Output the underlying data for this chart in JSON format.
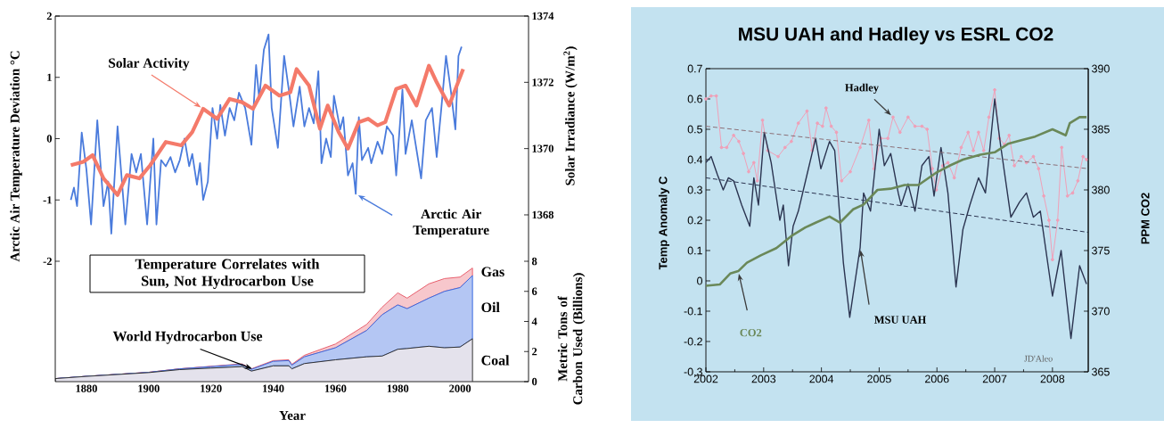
{
  "chart_data": [
    {
      "type": "line",
      "xlim": [
        1870,
        2022
      ],
      "xticks": [
        1880,
        1900,
        1920,
        1940,
        1960,
        1980,
        2000
      ],
      "tick_labels": "y",
      "ylim": [
        -2,
        2
      ],
      "yticks": [
        -2,
        -1,
        0,
        1,
        2
      ],
      "ylabel": "Arctic Air Temperature Deviation °C",
      "y2lim": [
        1366.6,
        1374
      ],
      "y2ticks": [
        1368,
        1370,
        1372,
        1374
      ],
      "y2label": "Solar Irradiance (W/m$^{2}$)",
      "series": [
        {
          "name": "Arctic Air Temperature",
          "color": "#4a7bdc",
          "x": [
            1875,
            1876,
            1877,
            1878.5,
            1880,
            1881.5,
            1883.5,
            1885.5,
            1887,
            1888,
            1890,
            1892.5,
            1894.5,
            1896,
            1897.5,
            1899.5,
            1901.5,
            1902.5,
            1904,
            1905.5,
            1907,
            1908.5,
            1910,
            1911.5,
            1913,
            1914,
            1915.5,
            1916.5,
            1917.5,
            1919,
            1920.5,
            1922,
            1923,
            1924.5,
            1926,
            1927.5,
            1929,
            1931,
            1933,
            1934.5,
            1935.5,
            1937,
            1938.5,
            1939.5,
            1941.5,
            1943.5,
            1945,
            1946.5,
            1948.5,
            1950,
            1951.5,
            1953,
            1954.5,
            1955.5,
            1957,
            1958.5,
            1959.5,
            1961.5,
            1962.5,
            1964,
            1965.5,
            1966.5,
            1967.5,
            1968.5,
            1970.5,
            1971.5,
            1973.5,
            1975,
            1976.5,
            1978.5,
            1979.5,
            1981.5,
            1982.5,
            1984.5,
            1987.5,
            1989,
            1991,
            1992.5,
            1994,
            1995.5,
            1997,
            1998.5,
            1999.5,
            2000.5
          ],
          "values": [
            -1.0,
            -0.8,
            -1.1,
            0.1,
            -0.5,
            -1.4,
            0.3,
            -1.1,
            -0.7,
            -1.55,
            0.2,
            -1.4,
            -0.25,
            -0.55,
            -0.25,
            -1.4,
            0,
            -1.4,
            -0.35,
            -0.45,
            -0.3,
            -0.55,
            -0.35,
            0,
            -0.45,
            -0.25,
            -0.75,
            -0.4,
            -1.0,
            -0.7,
            0.5,
            0,
            0.55,
            0.05,
            0.5,
            0.3,
            0.75,
            0.5,
            -0.1,
            1.2,
            0.65,
            1.45,
            1.7,
            0.5,
            -0.15,
            1.35,
            0.8,
            0.2,
            0.85,
            0.2,
            0.5,
            0.25,
            1.1,
            -0.4,
            0,
            -0.3,
            0.7,
            0.15,
            0.35,
            -0.6,
            -0.4,
            -0.9,
            0.35,
            -0.35,
            -0.15,
            -0.4,
            -0.05,
            -0.25,
            0.2,
            0.05,
            -0.6,
            0.8,
            -0.25,
            0.3,
            -0.65,
            0.3,
            0.5,
            -0.3,
            0.5,
            1.35,
            0.8,
            0.15,
            1.35,
            1.5
          ]
        },
        {
          "name": "Solar Activity",
          "color": "#f47a6a",
          "axis": "y2",
          "x": [
            1875,
            1879,
            1882,
            1885.5,
            1890,
            1893,
            1897,
            1900.5,
            1905.5,
            1910.5,
            1914,
            1917.5,
            1922,
            1926,
            1930,
            1933.5,
            1937.5,
            1942,
            1945.5,
            1947.5,
            1951.5,
            1955,
            1957.5,
            1961,
            1964,
            1967.5,
            1970.5,
            1973.5,
            1976,
            1979.5,
            1982.5,
            1986,
            1990,
            1992.5,
            1996.5,
            2001
          ],
          "values": [
            1369.5,
            1369.6,
            1369.8,
            1369.1,
            1368.6,
            1369.2,
            1369.1,
            1369.5,
            1370.2,
            1370.1,
            1370.5,
            1371.2,
            1370.9,
            1371.5,
            1371.4,
            1371.2,
            1371.9,
            1371.6,
            1371.7,
            1372.4,
            1371.9,
            1370.6,
            1371.3,
            1370.5,
            1370.0,
            1370.8,
            1370.9,
            1370.7,
            1370.8,
            1371.8,
            1371.9,
            1371.3,
            1372.5,
            1372.0,
            1371.3,
            1372.4
          ]
        }
      ]
    },
    {
      "type": "area",
      "stacked": true,
      "xlim": [
        1870,
        2022
      ],
      "xticks": [
        1880,
        1900,
        1920,
        1940,
        1960,
        1980,
        2000
      ],
      "xlabel": "Year",
      "ylim": [
        0,
        8
      ],
      "yticks": [
        0,
        2,
        4,
        6,
        8
      ],
      "ylabel": "Metric Tons of Carbon Used (Billions)",
      "annotations": [
        "Temperature Correlates with Sun, Not Hydrocarbon Use",
        {
          "text": "World Hydrocarbon Use",
          "x": 1934,
          "y": 0.8
        }
      ],
      "x": [
        1870,
        1880,
        1900,
        1910,
        1920,
        1930,
        1933,
        1940,
        1945,
        1946,
        1950,
        1960,
        1970,
        1975,
        1980,
        1983,
        1990,
        1995,
        2000,
        2004
      ],
      "series": [
        {
          "name": "Coal",
          "color": "#e4e2ec",
          "values": [
            0.2,
            0.35,
            0.6,
            0.8,
            0.9,
            1.0,
            0.7,
            1.05,
            1.05,
            0.85,
            1.2,
            1.45,
            1.65,
            1.7,
            2.15,
            2.2,
            2.35,
            2.25,
            2.3,
            2.85
          ]
        },
        {
          "name": "Oil",
          "color": "#b4c6f3",
          "values": [
            0,
            0,
            0.02,
            0.05,
            0.1,
            0.15,
            0.12,
            0.3,
            0.35,
            0.25,
            0.45,
            0.8,
            1.75,
            2.75,
            2.95,
            2.65,
            3.2,
            3.75,
            3.95,
            4.2
          ]
        },
        {
          "name": "Gas",
          "color": "#f7c7cc",
          "values": [
            0,
            0,
            0,
            0,
            0.02,
            0.03,
            0.03,
            0.05,
            0.05,
            0.05,
            0.1,
            0.25,
            0.4,
            0.5,
            0.8,
            0.7,
            0.95,
            0.85,
            0.7,
            0.5
          ]
        }
      ]
    },
    {
      "type": "line",
      "title": "MSU UAH and Hadley vs ESRL CO2",
      "xlim": [
        2002,
        2008.62
      ],
      "xticks": [
        2002,
        2003,
        2004,
        2005,
        2006,
        2007,
        2008
      ],
      "ylim": [
        -0.3,
        0.7
      ],
      "yticks": [
        -0.3,
        -0.2,
        -0.1,
        0,
        0.1,
        0.2,
        0.3,
        0.4,
        0.5,
        0.6,
        0.7
      ],
      "ylabel": "Temp Anomaly C",
      "y2lim": [
        365,
        390
      ],
      "y2ticks": [
        365,
        370,
        375,
        380,
        385,
        390
      ],
      "y2label": "PPM CO2",
      "annotations": [
        "JD'Aleo"
      ],
      "series": [
        {
          "name": "Hadley",
          "color": "#f0a0b8",
          "marker": "circle",
          "x": [
            2002.0,
            2002.09,
            2002.18,
            2002.27,
            2002.36,
            2002.48,
            2002.57,
            2002.65,
            2002.74,
            2002.83,
            2002.89,
            2002.98,
            2003.07,
            2003.25,
            2003.37,
            2003.48,
            2003.6,
            2003.75,
            2003.84,
            2003.93,
            2004.02,
            2004.08,
            2004.17,
            2004.26,
            2004.35,
            2004.5,
            2004.67,
            2004.82,
            2004.91,
            2005.03,
            2005.15,
            2005.24,
            2005.36,
            2005.5,
            2005.62,
            2005.74,
            2005.83,
            2005.92,
            2005.99,
            2006.1,
            2006.19,
            2006.3,
            2006.42,
            2006.54,
            2006.63,
            2006.72,
            2006.81,
            2006.9,
            2007.0,
            2007.08,
            2007.17,
            2007.25,
            2007.34,
            2007.46,
            2007.55,
            2007.67,
            2007.76,
            2007.85,
            2007.94,
            2008.0,
            2008.09,
            2008.16,
            2008.26,
            2008.35,
            2008.44,
            2008.53,
            2008.59
          ],
          "values": [
            0.6,
            0.61,
            0.61,
            0.44,
            0.44,
            0.48,
            0.46,
            0.42,
            0.36,
            0.39,
            0.33,
            0.53,
            0.43,
            0.41,
            0.44,
            0.46,
            0.52,
            0.56,
            0.43,
            0.52,
            0.51,
            0.57,
            0.51,
            0.49,
            0.33,
            0.36,
            0.44,
            0.53,
            0.37,
            0.47,
            0.47,
            0.54,
            0.49,
            0.54,
            0.51,
            0.51,
            0.5,
            0.37,
            0.3,
            0.38,
            0.39,
            0.34,
            0.44,
            0.49,
            0.43,
            0.49,
            0.43,
            0.54,
            0.63,
            0.47,
            0.45,
            0.48,
            0.38,
            0.41,
            0.39,
            0.41,
            0.37,
            0.28,
            0.2,
            0.07,
            0.2,
            0.44,
            0.28,
            0.29,
            0.33,
            0.41,
            0.4
          ]
        },
        {
          "name": "MSU UAH",
          "color": "#2b3450",
          "x": [
            2002.0,
            2002.09,
            2002.2,
            2002.3,
            2002.39,
            2002.48,
            2002.62,
            2002.76,
            2002.83,
            2002.91,
            2003.01,
            2003.13,
            2003.28,
            2003.34,
            2003.43,
            2003.51,
            2003.6,
            2003.75,
            2003.9,
            2003.99,
            2004.14,
            2004.23,
            2004.38,
            2004.49,
            2004.67,
            2004.73,
            2004.85,
            2005.0,
            2005.09,
            2005.2,
            2005.33,
            2005.38,
            2005.5,
            2005.62,
            2005.74,
            2005.86,
            2005.95,
            2006.07,
            2006.19,
            2006.33,
            2006.45,
            2006.57,
            2006.72,
            2006.84,
            2007.0,
            2007.1,
            2007.28,
            2007.43,
            2007.55,
            2007.67,
            2007.79,
            2008.0,
            2008.15,
            2008.32,
            2008.47,
            2008.59
          ],
          "values": [
            0.39,
            0.41,
            0.35,
            0.3,
            0.34,
            0.33,
            0.25,
            0.18,
            0.34,
            0.25,
            0.49,
            0.39,
            0.2,
            0.25,
            0.05,
            0.18,
            0.23,
            0.35,
            0.47,
            0.37,
            0.46,
            0.43,
            0.06,
            -0.12,
            0.11,
            0.29,
            0.23,
            0.5,
            0.38,
            0.42,
            0.29,
            0.25,
            0.32,
            0.23,
            0.38,
            0.41,
            0.28,
            0.44,
            0.29,
            -0.02,
            0.17,
            0.25,
            0.34,
            0.29,
            0.6,
            0.45,
            0.21,
            0.26,
            0.29,
            0.21,
            0.23,
            -0.05,
            0.1,
            -0.19,
            0.05,
            -0.01
          ]
        },
        {
          "name": "CO2",
          "color": "#6a8858",
          "axis": "y2",
          "x": [
            2002.0,
            2002.24,
            2002.42,
            2002.56,
            2002.71,
            2002.95,
            2003.22,
            2003.48,
            2003.72,
            2003.9,
            2004.14,
            2004.32,
            2004.55,
            2004.73,
            2004.97,
            2005.2,
            2005.44,
            2005.68,
            2005.98,
            2006.22,
            2006.45,
            2006.75,
            2007.0,
            2007.23,
            2007.46,
            2007.7,
            2008.0,
            2008.23,
            2008.3,
            2008.47,
            2008.59
          ],
          "values": [
            372.1,
            372.2,
            373.1,
            373.3,
            374.0,
            374.6,
            375.2,
            376.2,
            376.9,
            377.3,
            377.8,
            377.3,
            378.4,
            378.8,
            380.0,
            380.1,
            380.4,
            380.4,
            381.4,
            382.0,
            382.5,
            382.9,
            383.1,
            383.8,
            384.1,
            384.4,
            385.0,
            384.5,
            385.5,
            386.0,
            386.0
          ]
        },
        {
          "type": "line",
          "color": "#8c7078",
          "line_style": "dashed",
          "x": [
            2002,
            2008.62
          ],
          "values": [
            0.51,
            0.37
          ]
        },
        {
          "type": "line",
          "color": "#2b3450",
          "line_style": "dashed",
          "x": [
            2002,
            2008.62
          ],
          "values": [
            0.34,
            0.16
          ]
        }
      ]
    }
  ]
}
